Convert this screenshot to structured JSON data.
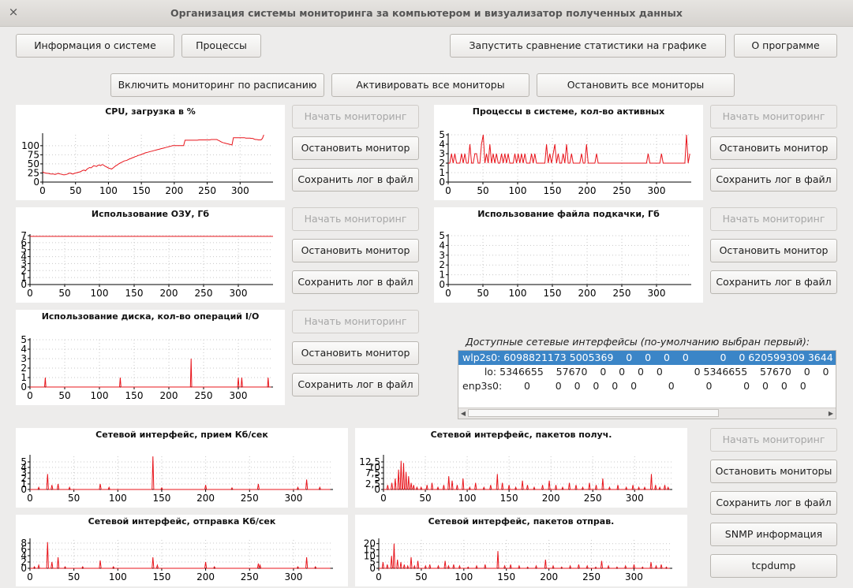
{
  "window": {
    "title": "Организация системы мониторинга за компьютером и визуализатор полученных данных",
    "close": "×"
  },
  "buttons": {
    "system_info": "Информация о системе",
    "processes": "Процессы",
    "compare": "Запустить сравнение статистики на графике",
    "about": "О программе",
    "schedule": "Включить мониторинг по расписанию",
    "activate_all": "Активировать все мониторы",
    "stop_all": "Остановить все мониторы",
    "start": "Начать мониторинг",
    "stop": "Остановить монитор",
    "save": "Сохранить лог в файл",
    "stop_monitors": "Остановить мониторы",
    "snmp": "SNMP информация",
    "tcpdump": "tcpdump"
  },
  "network": {
    "label": "Доступные сетевые интерфейсы (по-умолчанию выбран первый):",
    "rows": [
      "wlp2s0: 6098821173 5005369    0    0    0    0          0    0 620599309 3644",
      "       lo: 5346655    57670    0    0    0    0          0 5346655    57670    0    0",
      "enp3s0:       0        0    0    0    0    0          0          0          0    0    0    0"
    ]
  },
  "colors": {
    "line": "#e8141b",
    "grid": "#c8c8c8",
    "selection": "#3b85c7"
  },
  "chart_data": [
    {
      "type": "line",
      "title": "CPU, загрузка в %",
      "x_ticks": [
        0,
        50,
        100,
        150,
        200,
        250,
        300
      ],
      "xlim": [
        0,
        350
      ],
      "y_ticks": [
        0,
        25,
        50,
        75,
        100
      ],
      "ylim": [
        0,
        130
      ],
      "series": [
        {
          "values": [
            28,
            26,
            25,
            24,
            24,
            23,
            22,
            22,
            22,
            21,
            22,
            24,
            23,
            22,
            21,
            20,
            20,
            21,
            22,
            24,
            25,
            23,
            22,
            24,
            25,
            26,
            27,
            28,
            30,
            32,
            33,
            31,
            35,
            38,
            40,
            39,
            42,
            45,
            44,
            43,
            46,
            47,
            45,
            48,
            47,
            44,
            42,
            40,
            38,
            37,
            36,
            39,
            42,
            45,
            47,
            50,
            52,
            54,
            56,
            58,
            59,
            60,
            62,
            64,
            65,
            67,
            68,
            70,
            71,
            73,
            74,
            75,
            77,
            78,
            80,
            81,
            82,
            83,
            84,
            85,
            86,
            87,
            88,
            89,
            90,
            91,
            92,
            93,
            94,
            95,
            96,
            97,
            98,
            99,
            100,
            100,
            100,
            100,
            100,
            100,
            100,
            100,
            100,
            115,
            115,
            115,
            115,
            115,
            115,
            115,
            115,
            115,
            115,
            116,
            116,
            116,
            116,
            116,
            116,
            116,
            116,
            116,
            117,
            117,
            117,
            117,
            117,
            115,
            113,
            111,
            109,
            108,
            107,
            106,
            105,
            104,
            103,
            102,
            122,
            122,
            122,
            122,
            122,
            122,
            122,
            122,
            122,
            121,
            121,
            121,
            121,
            120,
            120,
            118,
            117,
            117,
            116,
            116,
            116,
            120,
            130
          ],
          "dx": 2.1
        }
      ]
    },
    {
      "type": "line",
      "title": "Процессы в системе, кол-во активных",
      "x_ticks": [
        0,
        50,
        100,
        150,
        200,
        250,
        300
      ],
      "xlim": [
        0,
        350
      ],
      "y_ticks": [
        0,
        1,
        2,
        3,
        4,
        5
      ],
      "ylim": [
        0,
        5
      ],
      "series": [
        {
          "values": [
            2,
            2,
            3,
            2,
            3,
            2,
            2,
            2,
            3,
            2,
            3,
            2,
            2,
            4,
            2,
            2,
            3,
            3,
            2,
            2,
            4,
            5,
            2,
            3,
            2,
            4,
            2,
            3,
            2,
            3,
            2,
            2,
            3,
            2,
            3,
            2,
            3,
            2,
            2,
            2,
            3,
            2,
            3,
            2,
            3,
            2,
            3,
            2,
            2,
            2,
            3,
            2,
            3,
            2,
            2,
            2,
            2,
            2,
            2,
            4,
            2,
            3,
            2,
            3,
            4,
            2,
            3,
            2,
            2,
            3,
            2,
            4,
            2,
            2,
            3,
            2,
            2,
            2,
            2,
            2,
            3,
            2,
            2,
            4,
            2,
            2,
            2,
            2,
            2,
            3,
            2,
            2,
            2,
            2,
            2,
            2,
            2,
            2,
            2,
            2,
            2,
            2,
            2,
            2,
            2,
            2,
            2,
            2,
            2,
            2,
            2,
            2,
            2,
            2,
            2,
            2,
            2,
            2,
            2,
            2,
            3,
            2,
            2,
            2,
            2,
            2,
            2,
            2,
            3,
            2,
            2,
            2,
            2,
            2,
            2,
            2,
            2,
            2,
            2,
            2,
            2,
            2,
            2,
            5,
            2,
            3
          ],
          "dx": 2.4
        }
      ]
    },
    {
      "type": "line",
      "title": "Использование ОЗУ, Гб",
      "x_ticks": [
        0,
        50,
        100,
        150,
        200,
        250,
        300
      ],
      "xlim": [
        0,
        350
      ],
      "y_ticks": [
        0,
        1,
        2,
        3,
        4,
        5,
        6,
        7
      ],
      "ylim": [
        0,
        7
      ],
      "series": [
        {
          "values": [
            6.9,
            6.9,
            6.9,
            6.9,
            6.9,
            6.9,
            6.9,
            6.9,
            6.9,
            6.9,
            6.9,
            6.9,
            6.9,
            6.9,
            6.9,
            6.9,
            6.9,
            6.9,
            6.9,
            6.9,
            6.9,
            6.9,
            6.9,
            6.9,
            6.9,
            6.9,
            6.9,
            6.9,
            6.9,
            6.9,
            6.9,
            6.9,
            6.9,
            6.9,
            6.9,
            6.9
          ],
          "dx": 10
        }
      ]
    },
    {
      "type": "line",
      "title": "Использование файла подкачки, Гб",
      "x_ticks": [
        0,
        50,
        100,
        150,
        200,
        250,
        300
      ],
      "xlim": [
        0,
        350
      ],
      "y_ticks": [
        0,
        1,
        2,
        3,
        4,
        5
      ],
      "ylim": [
        0,
        5
      ],
      "series": []
    },
    {
      "type": "line",
      "title": "Использование диска, кол-во операций I/O",
      "x_ticks": [
        0,
        50,
        100,
        150,
        200,
        250,
        300
      ],
      "xlim": [
        0,
        350
      ],
      "y_ticks": [
        0,
        1,
        2,
        3,
        4,
        5
      ],
      "ylim": [
        0,
        5
      ],
      "series": [
        {
          "spikes": [
            [
              22,
              1
            ],
            [
              130,
              1
            ],
            [
              232,
              3
            ],
            [
              300,
              1
            ],
            [
              305,
              1
            ],
            [
              343,
              1
            ]
          ]
        }
      ]
    },
    {
      "type": "line",
      "title": "Сетевой интерфейс, прием Кб/сек",
      "x_ticks": [
        0,
        50,
        100,
        150,
        200,
        250,
        300
      ],
      "xlim": [
        0,
        345
      ],
      "y_ticks": [
        0,
        1,
        2,
        3,
        4,
        5
      ],
      "ylim": [
        0,
        6
      ],
      "series": [
        {
          "spikes": [
            [
              10,
              0.4
            ],
            [
              20,
              2.8
            ],
            [
              25,
              0.8
            ],
            [
              32,
              1
            ],
            [
              45,
              0.4
            ],
            [
              80,
              1
            ],
            [
              90,
              0.4
            ],
            [
              140,
              6
            ],
            [
              150,
              0.3
            ],
            [
              200,
              0.8
            ],
            [
              230,
              0.3
            ],
            [
              260,
              1
            ],
            [
              305,
              0.4
            ],
            [
              315,
              1.8
            ],
            [
              330,
              0.4
            ]
          ]
        }
      ]
    },
    {
      "type": "line",
      "title": "Сетевой интерфейс, пакетов получ.",
      "x_ticks": [
        0,
        50,
        100,
        150,
        200,
        250,
        300
      ],
      "xlim": [
        0,
        345
      ],
      "y_ticks": [
        0,
        2.5,
        5,
        7.5,
        10,
        12.5
      ],
      "ylim": [
        0,
        15
      ],
      "series": [
        {
          "spikes": [
            [
              5,
              2
            ],
            [
              10,
              3
            ],
            [
              14,
              5
            ],
            [
              18,
              9
            ],
            [
              21,
              13
            ],
            [
              24,
              12
            ],
            [
              27,
              8
            ],
            [
              30,
              6
            ],
            [
              33,
              3
            ],
            [
              36,
              2
            ],
            [
              40,
              1
            ],
            [
              45,
              1
            ],
            [
              52,
              2
            ],
            [
              58,
              3
            ],
            [
              65,
              1
            ],
            [
              72,
              2
            ],
            [
              78,
              6
            ],
            [
              82,
              4
            ],
            [
              88,
              2
            ],
            [
              95,
              5
            ],
            [
              103,
              1
            ],
            [
              110,
              3
            ],
            [
              120,
              1
            ],
            [
              128,
              2
            ],
            [
              136,
              7
            ],
            [
              142,
              3
            ],
            [
              150,
              2
            ],
            [
              158,
              1
            ],
            [
              166,
              4
            ],
            [
              172,
              2
            ],
            [
              180,
              1
            ],
            [
              190,
              2
            ],
            [
              198,
              4
            ],
            [
              206,
              2
            ],
            [
              214,
              1
            ],
            [
              222,
              3
            ],
            [
              230,
              2
            ],
            [
              238,
              1
            ],
            [
              246,
              3
            ],
            [
              254,
              2
            ],
            [
              262,
              5
            ],
            [
              270,
              1
            ],
            [
              280,
              2
            ],
            [
              290,
              1
            ],
            [
              298,
              2
            ],
            [
              305,
              1
            ],
            [
              312,
              1
            ],
            [
              320,
              7
            ],
            [
              325,
              2
            ],
            [
              330,
              1
            ],
            [
              336,
              2
            ],
            [
              340,
              1
            ]
          ]
        }
      ]
    },
    {
      "type": "line",
      "title": "Сетевой интерфейс, отправка Кб/сек",
      "x_ticks": [
        0,
        50,
        100,
        150,
        200,
        250,
        300
      ],
      "xlim": [
        0,
        345
      ],
      "y_ticks": [
        0,
        2,
        4,
        6,
        8
      ],
      "ylim": [
        0,
        9
      ],
      "series": [
        {
          "spikes": [
            [
              5,
              0.5
            ],
            [
              10,
              1
            ],
            [
              20,
              8.3
            ],
            [
              25,
              2
            ],
            [
              32,
              3.5
            ],
            [
              40,
              0.5
            ],
            [
              60,
              0.5
            ],
            [
              80,
              2.5
            ],
            [
              95,
              0.5
            ],
            [
              140,
              3.5
            ],
            [
              145,
              1
            ],
            [
              200,
              2
            ],
            [
              210,
              0.5
            ],
            [
              260,
              1.5
            ],
            [
              262,
              1
            ],
            [
              305,
              0.5
            ],
            [
              315,
              3.5
            ],
            [
              325,
              0.5
            ]
          ]
        }
      ]
    },
    {
      "type": "line",
      "title": "Сетевой интерфейс, пакетов отправ.",
      "x_ticks": [
        0,
        50,
        100,
        150,
        200,
        250,
        300
      ],
      "xlim": [
        0,
        345
      ],
      "y_ticks": [
        0,
        5,
        10,
        15,
        20
      ],
      "ylim": [
        0,
        23
      ],
      "series": [
        {
          "spikes": [
            [
              5,
              5
            ],
            [
              10,
              3
            ],
            [
              15,
              10
            ],
            [
              18,
              20
            ],
            [
              22,
              7
            ],
            [
              26,
              5
            ],
            [
              30,
              3
            ],
            [
              34,
              2
            ],
            [
              38,
              9
            ],
            [
              42,
              2
            ],
            [
              46,
              6
            ],
            [
              55,
              2
            ],
            [
              60,
              3
            ],
            [
              70,
              2
            ],
            [
              78,
              6
            ],
            [
              82,
              2
            ],
            [
              88,
              3
            ],
            [
              95,
              2
            ],
            [
              105,
              1
            ],
            [
              115,
              2
            ],
            [
              125,
              3
            ],
            [
              140,
              14
            ],
            [
              148,
              2
            ],
            [
              155,
              3
            ],
            [
              165,
              2
            ],
            [
              175,
              1
            ],
            [
              185,
              2
            ],
            [
              196,
              7
            ],
            [
              205,
              2
            ],
            [
              215,
              1
            ],
            [
              225,
              2
            ],
            [
              235,
              3
            ],
            [
              245,
              2
            ],
            [
              255,
              1
            ],
            [
              262,
              6
            ],
            [
              270,
              2
            ],
            [
              280,
              1
            ],
            [
              290,
              2
            ],
            [
              300,
              3
            ],
            [
              310,
              1
            ],
            [
              320,
              5
            ],
            [
              326,
              2
            ],
            [
              332,
              3
            ],
            [
              338,
              1
            ]
          ]
        }
      ]
    }
  ]
}
